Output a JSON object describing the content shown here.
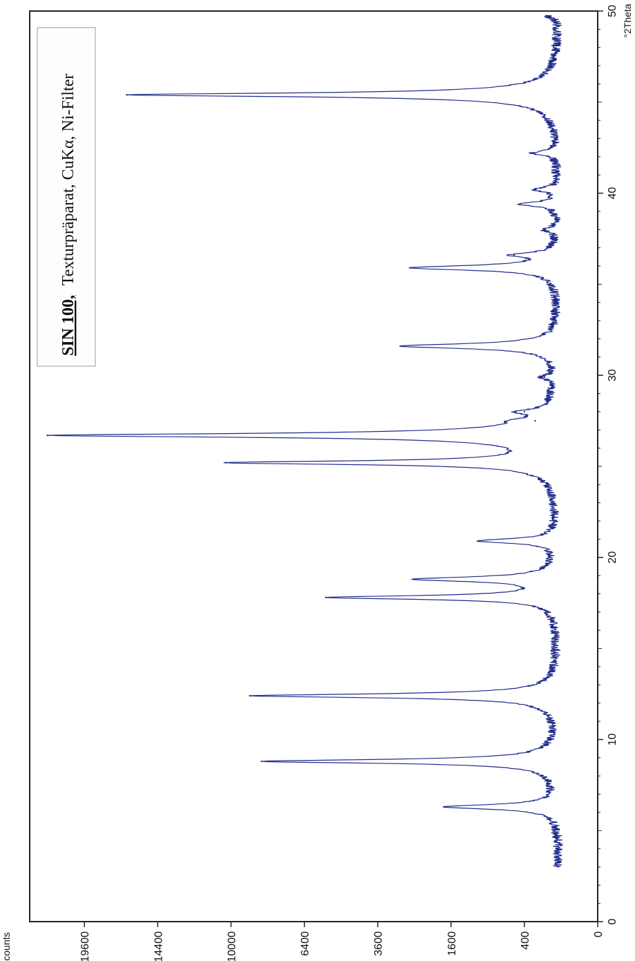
{
  "chart_data": {
    "type": "line",
    "legend_text": {
      "sample": "SIN 100,",
      "description": "Texturpräparat, CuKα, Ni-Filter"
    },
    "xlabel": "°2Theta",
    "ylabel": "counts",
    "x_range": [
      0,
      50
    ],
    "x_ticks": [
      0,
      10,
      20,
      30,
      40,
      50
    ],
    "x_tick_labels": [
      "0",
      "10",
      "20",
      "30",
      "40",
      "50"
    ],
    "y_scale": "sqrt",
    "y_range": [
      0,
      24000
    ],
    "y_ticks": [
      0,
      400,
      1600,
      3600,
      6400,
      10000,
      14400,
      19600
    ],
    "y_tick_labels": [
      "0",
      "400",
      "1600",
      "3600",
      "6400",
      "10000",
      "14400",
      "19600"
    ],
    "grid": false,
    "line_color": "#1f2a8a",
    "baseline_counts": 110,
    "peaks": [
      {
        "two_theta": 6.3,
        "counts": 1750
      },
      {
        "two_theta": 8.8,
        "counts": 8400
      },
      {
        "two_theta": 12.4,
        "counts": 9000
      },
      {
        "two_theta": 17.8,
        "counts": 5500
      },
      {
        "two_theta": 18.8,
        "counts": 2500
      },
      {
        "two_theta": 20.9,
        "counts": 1050
      },
      {
        "two_theta": 25.2,
        "counts": 10300
      },
      {
        "two_theta": 26.7,
        "counts": 22500
      },
      {
        "two_theta": 27.5,
        "counts": 290
      },
      {
        "two_theta": 28.0,
        "counts": 400
      },
      {
        "two_theta": 29.9,
        "counts": 210
      },
      {
        "two_theta": 31.6,
        "counts": 2900
      },
      {
        "two_theta": 35.9,
        "counts": 2600
      },
      {
        "two_theta": 36.6,
        "counts": 520
      },
      {
        "two_theta": 38.0,
        "counts": 210
      },
      {
        "two_theta": 39.4,
        "counts": 450
      },
      {
        "two_theta": 40.2,
        "counts": 290
      },
      {
        "two_theta": 42.2,
        "counts": 310
      },
      {
        "two_theta": 45.4,
        "counts": 16500
      },
      {
        "two_theta": 49.7,
        "counts": 180
      }
    ]
  }
}
